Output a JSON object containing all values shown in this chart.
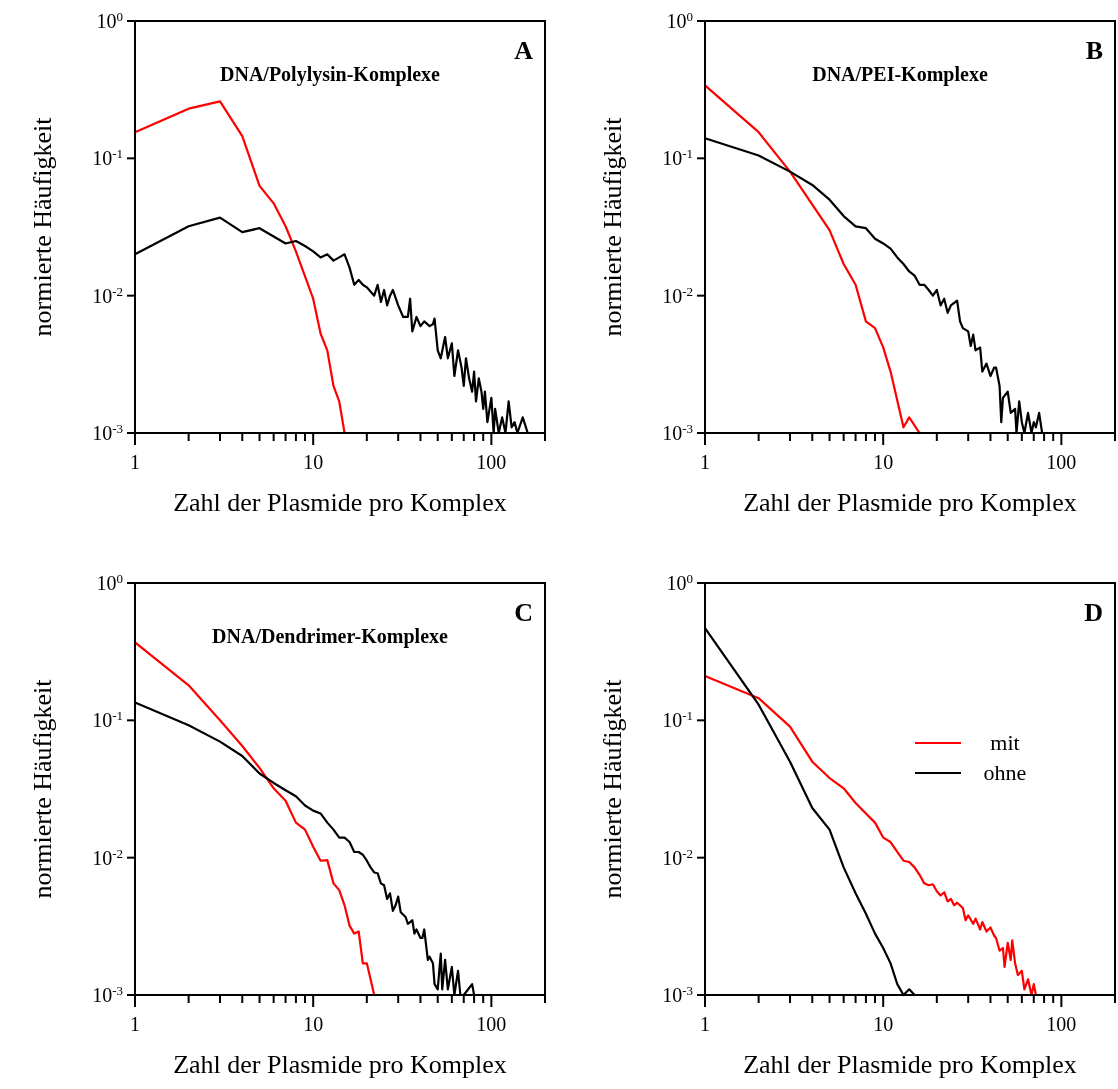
{
  "chart_data": [
    {
      "type": "line",
      "title": "DNA/Polylysin-Komplexe",
      "annotations": [
        "A"
      ],
      "xlabel": "Zahl der Plasmide pro Komplex",
      "ylabel": "normierte Häufigkeit",
      "log": "xy",
      "xlim": [
        1,
        200
      ],
      "ylim": [
        0.001,
        1
      ],
      "xticks": [
        1,
        {
          "value": 2,
          "label": null
        },
        {
          "value": 3,
          "label": null
        },
        {
          "value": 4,
          "label": null
        },
        {
          "value": 5,
          "label": null
        },
        {
          "value": 6,
          "label": null
        },
        {
          "value": 7,
          "label": null
        },
        {
          "value": 8,
          "label": null
        },
        {
          "value": 9,
          "label": null
        },
        10,
        {
          "value": 20,
          "label": null
        },
        {
          "value": 30,
          "label": null
        },
        {
          "value": 40,
          "label": null
        },
        {
          "value": 50,
          "label": null
        },
        {
          "value": 60,
          "label": null
        },
        {
          "value": 70,
          "label": null
        },
        {
          "value": 80,
          "label": null
        },
        {
          "value": 90,
          "label": null
        },
        100,
        {
          "value": 200,
          "label": null
        }
      ],
      "yticks": [
        {
          "value": 0.001,
          "label": "10$^{-3}$"
        },
        {
          "value": 0.01,
          "label": "10$^{-2}$"
        },
        {
          "value": 0.1,
          "label": "10$^{-1}$"
        },
        {
          "value": 1,
          "label": "10$^{0}$"
        }
      ],
      "series": [
        {
          "color": "#ff0000",
          "x": [
            1,
            2,
            3,
            4,
            5,
            6,
            7,
            8,
            10,
            11,
            12,
            13,
            14,
            15
          ],
          "values": [
            0.155,
            0.23,
            0.26,
            0.145,
            0.063,
            0.047,
            0.032,
            0.021,
            0.0095,
            0.0053,
            0.004,
            0.0022,
            0.0017,
            0.001
          ]
        },
        {
          "color": "#000000",
          "x": [
            1,
            2,
            3,
            4,
            5,
            6,
            7,
            8,
            9,
            10,
            11,
            12,
            13,
            14,
            15,
            16,
            17,
            18,
            19,
            20,
            22,
            23,
            24,
            25,
            26,
            27,
            28,
            30,
            32,
            34,
            35,
            36,
            38,
            40,
            42,
            45,
            47,
            48,
            50,
            52,
            55,
            57,
            60,
            62,
            65,
            68,
            70,
            72,
            75,
            78,
            80,
            82,
            85,
            88,
            90,
            92,
            95,
            100,
            103,
            105,
            110,
            115,
            120,
            125,
            130,
            135,
            140,
            150,
            160,
            170,
            180
          ],
          "values": [
            0.02,
            0.032,
            0.037,
            0.029,
            0.031,
            0.027,
            0.024,
            0.025,
            0.023,
            0.021,
            0.019,
            0.02,
            0.018,
            0.019,
            0.02,
            0.016,
            0.012,
            0.013,
            0.012,
            0.0115,
            0.01,
            0.012,
            0.009,
            0.011,
            0.0085,
            0.01,
            0.011,
            0.0085,
            0.007,
            0.007,
            0.0095,
            0.0055,
            0.007,
            0.006,
            0.0065,
            0.006,
            0.0062,
            0.0068,
            0.004,
            0.0035,
            0.005,
            0.0035,
            0.0045,
            0.0026,
            0.004,
            0.003,
            0.0022,
            0.0035,
            0.0025,
            0.002,
            0.0028,
            0.0017,
            0.0025,
            0.002,
            0.0015,
            0.002,
            0.0012,
            0.0018,
            0.001,
            0.0015,
            0.001,
            0.0013,
            0.001,
            0.0017,
            0.0011,
            0.0012,
            0.001,
            0.0013,
            0.001,
            0.001,
            0.001
          ]
        }
      ]
    },
    {
      "type": "line",
      "title": "DNA/PEI-Komplexe",
      "annotations": [
        "B"
      ],
      "xlabel": "Zahl der Plasmide pro Komplex",
      "ylabel": "normierte Häufigkeit",
      "log": "xy",
      "xlim": [
        1,
        200
      ],
      "ylim": [
        0.001,
        1
      ],
      "xticks": [
        1,
        {
          "value": 2,
          "label": null
        },
        {
          "value": 3,
          "label": null
        },
        {
          "value": 4,
          "label": null
        },
        {
          "value": 5,
          "label": null
        },
        {
          "value": 6,
          "label": null
        },
        {
          "value": 7,
          "label": null
        },
        {
          "value": 8,
          "label": null
        },
        {
          "value": 9,
          "label": null
        },
        10,
        {
          "value": 20,
          "label": null
        },
        {
          "value": 30,
          "label": null
        },
        {
          "value": 40,
          "label": null
        },
        {
          "value": 50,
          "label": null
        },
        {
          "value": 60,
          "label": null
        },
        {
          "value": 70,
          "label": null
        },
        {
          "value": 80,
          "label": null
        },
        {
          "value": 90,
          "label": null
        },
        100,
        {
          "value": 200,
          "label": null
        }
      ],
      "yticks": [
        {
          "value": 0.001,
          "label": "10$^{-3}$"
        },
        {
          "value": 0.01,
          "label": "10$^{-2}$"
        },
        {
          "value": 0.1,
          "label": "10$^{-1}$"
        },
        {
          "value": 1,
          "label": "10$^{0}$"
        }
      ],
      "series": [
        {
          "color": "#ff0000",
          "x": [
            1,
            2,
            3,
            5,
            6,
            7,
            8,
            9,
            10,
            11,
            13,
            14,
            16
          ],
          "values": [
            0.34,
            0.155,
            0.08,
            0.03,
            0.017,
            0.012,
            0.0065,
            0.0058,
            0.0042,
            0.0028,
            0.0011,
            0.0013,
            0.001
          ]
        },
        {
          "color": "#000000",
          "x": [
            1,
            2,
            3,
            4,
            5,
            6,
            7,
            8,
            9,
            10,
            11,
            12,
            13,
            14,
            15,
            16,
            17,
            18,
            19,
            20,
            21,
            22,
            23,
            24,
            26,
            27,
            28,
            30,
            31,
            32,
            33,
            35,
            36,
            38,
            40,
            42,
            43,
            45,
            46,
            47,
            50,
            52,
            55,
            56,
            58,
            60,
            62,
            65,
            68,
            70,
            72,
            75,
            78
          ],
          "values": [
            0.14,
            0.105,
            0.08,
            0.064,
            0.05,
            0.038,
            0.032,
            0.031,
            0.026,
            0.024,
            0.022,
            0.019,
            0.017,
            0.015,
            0.014,
            0.012,
            0.012,
            0.011,
            0.01,
            0.011,
            0.0085,
            0.0095,
            0.0075,
            0.0085,
            0.0092,
            0.0065,
            0.0058,
            0.0055,
            0.0043,
            0.0052,
            0.004,
            0.0042,
            0.0028,
            0.0032,
            0.0026,
            0.003,
            0.003,
            0.0022,
            0.0012,
            0.0018,
            0.002,
            0.0014,
            0.0015,
            0.001,
            0.0017,
            0.0012,
            0.001,
            0.0014,
            0.001,
            0.0012,
            0.0011,
            0.0014,
            0.001
          ]
        }
      ]
    },
    {
      "type": "line",
      "title": "DNA/Dendrimer-Komplexe",
      "annotations": [
        "C"
      ],
      "xlabel": "Zahl der Plasmide pro Komplex",
      "ylabel": "normierte Häufigkeit",
      "log": "xy",
      "xlim": [
        1,
        200
      ],
      "ylim": [
        0.001,
        1
      ],
      "xticks": [
        1,
        {
          "value": 2,
          "label": null
        },
        {
          "value": 3,
          "label": null
        },
        {
          "value": 4,
          "label": null
        },
        {
          "value": 5,
          "label": null
        },
        {
          "value": 6,
          "label": null
        },
        {
          "value": 7,
          "label": null
        },
        {
          "value": 8,
          "label": null
        },
        {
          "value": 9,
          "label": null
        },
        10,
        {
          "value": 20,
          "label": null
        },
        {
          "value": 30,
          "label": null
        },
        {
          "value": 40,
          "label": null
        },
        {
          "value": 50,
          "label": null
        },
        {
          "value": 60,
          "label": null
        },
        {
          "value": 70,
          "label": null
        },
        {
          "value": 80,
          "label": null
        },
        {
          "value": 90,
          "label": null
        },
        100,
        {
          "value": 200,
          "label": null
        }
      ],
      "yticks": [
        {
          "value": 0.001,
          "label": "10$^{-3}$"
        },
        {
          "value": 0.01,
          "label": "10$^{-2}$"
        },
        {
          "value": 0.1,
          "label": "10$^{-1}$"
        },
        {
          "value": 1,
          "label": "10$^{0}$"
        }
      ],
      "series": [
        {
          "color": "#ff0000",
          "x": [
            1,
            2,
            3,
            4,
            5,
            6,
            7,
            8,
            9,
            10,
            11,
            12,
            13,
            14,
            15,
            16,
            17,
            18,
            19,
            20,
            21,
            22
          ],
          "values": [
            0.37,
            0.18,
            0.1,
            0.065,
            0.045,
            0.032,
            0.026,
            0.018,
            0.016,
            0.012,
            0.0095,
            0.0096,
            0.0065,
            0.0058,
            0.0045,
            0.0032,
            0.0028,
            0.0029,
            0.0017,
            0.0017,
            0.0013,
            0.001
          ]
        },
        {
          "color": "#000000",
          "x": [
            1,
            2,
            3,
            4,
            5,
            6,
            7,
            8,
            9,
            10,
            11,
            12,
            13,
            14,
            15,
            16,
            17,
            18,
            19,
            20,
            21,
            22,
            23,
            24,
            25,
            26,
            27,
            28,
            29,
            30,
            31,
            33,
            34,
            36,
            37,
            38,
            40,
            41,
            42,
            44,
            45,
            47,
            48,
            50,
            52,
            53,
            55,
            57,
            60,
            62,
            65,
            67,
            70,
            78,
            80
          ],
          "values": [
            0.135,
            0.092,
            0.07,
            0.055,
            0.041,
            0.035,
            0.031,
            0.028,
            0.024,
            0.022,
            0.021,
            0.018,
            0.016,
            0.014,
            0.014,
            0.013,
            0.011,
            0.011,
            0.0105,
            0.0095,
            0.0085,
            0.0078,
            0.0077,
            0.0065,
            0.0063,
            0.005,
            0.0055,
            0.0041,
            0.0045,
            0.0052,
            0.004,
            0.0037,
            0.0033,
            0.0035,
            0.0028,
            0.003,
            0.0026,
            0.0026,
            0.003,
            0.0018,
            0.0019,
            0.0017,
            0.0012,
            0.0011,
            0.002,
            0.0011,
            0.0018,
            0.0011,
            0.0016,
            0.001,
            0.0015,
            0.001,
            0.001,
            0.0012,
            0.001
          ]
        }
      ]
    },
    {
      "type": "line",
      "annotations": [
        "D"
      ],
      "xlabel": "Zahl der Plasmide pro Komplex",
      "ylabel": "normierte Häufigkeit",
      "log": "xy",
      "xlim": [
        1,
        200
      ],
      "ylim": [
        0.001,
        1
      ],
      "legend": "right",
      "xticks": [
        1,
        {
          "value": 2,
          "label": null
        },
        {
          "value": 3,
          "label": null
        },
        {
          "value": 4,
          "label": null
        },
        {
          "value": 5,
          "label": null
        },
        {
          "value": 6,
          "label": null
        },
        {
          "value": 7,
          "label": null
        },
        {
          "value": 8,
          "label": null
        },
        {
          "value": 9,
          "label": null
        },
        10,
        {
          "value": 20,
          "label": null
        },
        {
          "value": 30,
          "label": null
        },
        {
          "value": 40,
          "label": null
        },
        {
          "value": 50,
          "label": null
        },
        {
          "value": 60,
          "label": null
        },
        {
          "value": 70,
          "label": null
        },
        {
          "value": 80,
          "label": null
        },
        {
          "value": 90,
          "label": null
        },
        100,
        {
          "value": 200,
          "label": null
        }
      ],
      "yticks": [
        {
          "value": 0.001,
          "label": "10$^{-3}$"
        },
        {
          "value": 0.01,
          "label": "10$^{-2}$"
        },
        {
          "value": 0.1,
          "label": "10$^{-1}$"
        },
        {
          "value": 1,
          "label": "10$^{0}$"
        }
      ],
      "series": [
        {
          "name": "mit",
          "color": "#ff0000",
          "x": [
            1,
            2,
            3,
            4,
            5,
            6,
            7,
            8,
            9,
            10,
            11,
            12,
            13,
            14,
            15,
            16,
            17,
            18,
            19,
            20,
            21,
            22,
            23,
            24,
            25,
            26,
            28,
            29,
            30,
            32,
            33,
            35,
            36,
            38,
            40,
            42,
            43,
            45,
            47,
            48,
            50,
            52,
            53,
            55,
            57,
            60,
            62,
            65,
            68,
            70,
            72,
            75
          ],
          "values": [
            0.21,
            0.145,
            0.09,
            0.05,
            0.038,
            0.032,
            0.025,
            0.021,
            0.018,
            0.014,
            0.013,
            0.011,
            0.0095,
            0.0093,
            0.0085,
            0.0075,
            0.0065,
            0.0063,
            0.0064,
            0.0057,
            0.0053,
            0.0056,
            0.0048,
            0.005,
            0.0045,
            0.0047,
            0.0043,
            0.0035,
            0.0038,
            0.0033,
            0.0036,
            0.003,
            0.0034,
            0.0029,
            0.0031,
            0.0027,
            0.0026,
            0.0021,
            0.0022,
            0.0016,
            0.0024,
            0.0018,
            0.0025,
            0.0017,
            0.0014,
            0.0015,
            0.0011,
            0.0013,
            0.001,
            0.0012,
            0.001,
            0.001
          ]
        },
        {
          "name": "ohne",
          "color": "#000000",
          "x": [
            1,
            2,
            3,
            4,
            5,
            6,
            7,
            8,
            9,
            10,
            11,
            12,
            13,
            14,
            15
          ],
          "values": [
            0.47,
            0.13,
            0.05,
            0.023,
            0.016,
            0.0085,
            0.0055,
            0.0039,
            0.0028,
            0.0022,
            0.0017,
            0.0012,
            0.001,
            0.0011,
            0.001
          ]
        }
      ]
    }
  ]
}
